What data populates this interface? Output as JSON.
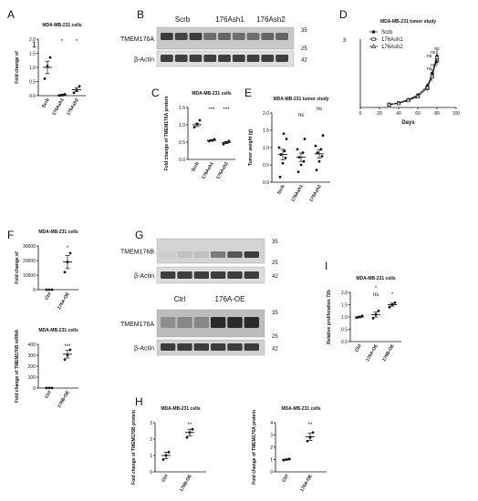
{
  "figure": {
    "panel_labels": [
      "A",
      "B",
      "C",
      "D",
      "E",
      "F",
      "G",
      "H",
      "I"
    ],
    "stray_marks": {
      "a_axis_one": "1",
      "d_axis_three": "3"
    }
  },
  "blots": {
    "B": {
      "col_labels": [
        "Scrb",
        "176Ash1",
        "176Ash2"
      ],
      "rows": [
        {
          "label": "TMEM176A",
          "markers": [
            "35",
            "25"
          ]
        },
        {
          "label": "β-Actin",
          "markers": [
            "42"
          ]
        }
      ]
    },
    "G": [
      {
        "col_labels": [
          "Ctrl",
          "176B-OE"
        ],
        "rows": [
          {
            "label": "TMEM176B",
            "markers": [
              "35",
              "25"
            ]
          },
          {
            "label": "β-Actin",
            "markers": [
              "42"
            ]
          }
        ]
      },
      {
        "col_labels": [
          "Ctrl",
          "176A-OE"
        ],
        "rows": [
          {
            "label": "TMEM176A",
            "markers": [
              "35",
              "25"
            ]
          },
          {
            "label": "β-Actin",
            "markers": [
              "42"
            ]
          }
        ]
      }
    ]
  },
  "chart_data": [
    {
      "panel": "A",
      "type": "scatter",
      "title": "MDA-MB-231 cells",
      "ylabel": "Fold change of",
      "ylim": [
        0,
        2
      ],
      "yticks": [
        "0.0",
        "0.5",
        "1.0",
        "1.5",
        "2.0"
      ],
      "categories": [
        "Scrb",
        "176Ash1",
        "176Ash2"
      ],
      "groups": [
        {
          "points": [
            0.6,
            1.05,
            1.35
          ],
          "mean": 1.0,
          "err": 0.22
        },
        {
          "points": [
            0.0,
            0.02,
            0.05
          ],
          "mean": 0.02,
          "err": 0.03
        },
        {
          "points": [
            0.1,
            0.2,
            0.33
          ],
          "mean": 0.21,
          "err": 0.07
        }
      ],
      "annotations": [
        {
          "text": "*",
          "group": 1
        },
        {
          "text": "*",
          "group": 2
        }
      ]
    },
    {
      "panel": "C",
      "type": "scatter",
      "title": "MDA-MB-231 cells",
      "ylabel": "Fold change of TMEM176A protein",
      "ylim": [
        0,
        1.5
      ],
      "yticks": [
        "0.0",
        "0.5",
        "1.0",
        "1.5"
      ],
      "categories": [
        "Scrb",
        "176Ash1",
        "176Ash2"
      ],
      "groups": [
        {
          "points": [
            0.93,
            1.02,
            1.13
          ],
          "mean": 1.0,
          "err": 0.05
        },
        {
          "points": [
            0.53,
            0.55,
            0.58
          ],
          "mean": 0.55,
          "err": 0.02
        },
        {
          "points": [
            0.44,
            0.49,
            0.53
          ],
          "mean": 0.49,
          "err": 0.03
        }
      ],
      "annotations": [
        {
          "text": "***",
          "group": 1
        },
        {
          "text": "***",
          "group": 2
        }
      ]
    },
    {
      "panel": "D",
      "type": "line",
      "title": "MDA-MB-231 tumor study",
      "xlabel": "Days",
      "ylabel": "",
      "xlim": [
        0,
        100
      ],
      "ylim": [
        0,
        600
      ],
      "xticks": [
        "0",
        "20",
        "40",
        "60",
        "80",
        "100"
      ],
      "x": [
        30,
        40,
        50,
        60,
        70,
        75,
        80
      ],
      "series": [
        {
          "name": "Scrb",
          "marker": "filled-circle",
          "values": [
            28,
            40,
            70,
            110,
            190,
            300,
            450
          ],
          "err": [
            5,
            6,
            10,
            15,
            25,
            40,
            60
          ]
        },
        {
          "name": "176Ash1",
          "marker": "open-square",
          "values": [
            25,
            38,
            65,
            100,
            170,
            280,
            420
          ],
          "err": [
            5,
            6,
            10,
            15,
            25,
            40,
            60
          ]
        },
        {
          "name": "176Ash2",
          "marker": "open-triangle",
          "values": [
            26,
            36,
            62,
            95,
            175,
            270,
            440
          ],
          "err": [
            5,
            6,
            10,
            15,
            25,
            40,
            60
          ]
        }
      ],
      "annotations": [
        "ns",
        "ns",
        "ns",
        "ns",
        "ns",
        "ns"
      ]
    },
    {
      "panel": "E",
      "type": "scatter",
      "title": "MDA-MB-231 tumor study",
      "ylabel": "Tumor  weight (g)",
      "ylim": [
        0,
        2
      ],
      "yticks": [
        "0.0",
        "0.5",
        "1.0",
        "1.5",
        "2.0"
      ],
      "categories": [
        "Scrb",
        "176Ash1",
        "176Ash2"
      ],
      "groups": [
        {
          "points": [
            0.15,
            0.55,
            0.7,
            0.8,
            0.9,
            1.0,
            1.25,
            1.4
          ],
          "mean": 0.8,
          "err": 0.15
        },
        {
          "points": [
            0.3,
            0.5,
            0.6,
            0.72,
            0.85,
            0.95,
            1.25
          ],
          "mean": 0.72,
          "err": 0.12
        },
        {
          "points": [
            0.35,
            0.6,
            0.75,
            0.85,
            0.95,
            1.05,
            1.35
          ],
          "mean": 0.82,
          "err": 0.12
        }
      ],
      "annotations": [
        {
          "text": "ns",
          "group": 1,
          "level": 1
        },
        {
          "text": "ns",
          "group": 2,
          "level": 2
        }
      ]
    },
    {
      "panel": "F-top",
      "type": "scatter",
      "title": "MDA-MB-231 cells",
      "ylabel": "Fold change of",
      "ylim": [
        0,
        30000
      ],
      "yticks": [
        "0",
        "10000",
        "20000",
        "30000"
      ],
      "categories": [
        "Ctrl",
        "176A-OE"
      ],
      "groups": [
        {
          "points": [
            1,
            1,
            1
          ],
          "mean": 1,
          "err": 0
        },
        {
          "points": [
            12000,
            19000,
            25000
          ],
          "mean": 19000,
          "err": 4500
        }
      ],
      "annotations": [
        {
          "text": "*",
          "group": 1
        }
      ]
    },
    {
      "panel": "F-bottom",
      "type": "scatter",
      "title": "MDA-MB-231 cells",
      "ylabel": "Fold change of TMEM176B mRNA",
      "ylim": [
        0,
        400
      ],
      "yticks": [
        "0",
        "100",
        "200",
        "300",
        "400"
      ],
      "categories": [
        "Ctrl",
        "176B-OE"
      ],
      "groups": [
        {
          "points": [
            1,
            1,
            1
          ],
          "mean": 1,
          "err": 0
        },
        {
          "points": [
            260,
            300,
            350
          ],
          "mean": 310,
          "err": 35
        }
      ],
      "annotations": [
        {
          "text": "***",
          "group": 1
        }
      ]
    },
    {
      "panel": "H-left",
      "type": "scatter",
      "title": "MDA-MB-231 cells",
      "ylabel": "Fold change of TMEM176B protein",
      "ylim": [
        0,
        3
      ],
      "yticks": [
        "0",
        "1",
        "2",
        "3"
      ],
      "categories": [
        "Ctrl",
        "176B-OE"
      ],
      "groups": [
        {
          "points": [
            0.75,
            1.0,
            1.2
          ],
          "mean": 1.0,
          "err": 0.2
        },
        {
          "points": [
            2.1,
            2.4,
            2.6
          ],
          "mean": 2.4,
          "err": 0.2
        }
      ],
      "annotations": [
        {
          "text": "**",
          "group": 1
        }
      ]
    },
    {
      "panel": "H-right",
      "type": "scatter",
      "title": "MDA-MB-231 cells",
      "ylabel": "Fold change of TMEM176A protein",
      "ylim": [
        0,
        4
      ],
      "yticks": [
        "0",
        "1",
        "2",
        "3",
        "4"
      ],
      "categories": [
        "Ctrl",
        "176A-OE"
      ],
      "groups": [
        {
          "points": [
            0.95,
            1.0,
            1.05
          ],
          "mean": 1.0,
          "err": 0.05
        },
        {
          "points": [
            2.5,
            2.8,
            3.2
          ],
          "mean": 2.85,
          "err": 0.3
        }
      ],
      "annotations": [
        {
          "text": "**",
          "group": 1
        }
      ]
    },
    {
      "panel": "I",
      "type": "scatter",
      "title": "MDA-MB-231 cells",
      "ylabel": "Relative proliferation 72h",
      "ylim": [
        0,
        2
      ],
      "yticks": [
        "0.0",
        "0.5",
        "1.0",
        "1.5",
        "2.0"
      ],
      "categories": [
        "Ctrl",
        "176A-OE",
        "176B-OE"
      ],
      "groups": [
        {
          "points": [
            0.97,
            1.0,
            1.05
          ],
          "mean": 1.0,
          "err": 0.03
        },
        {
          "points": [
            0.95,
            1.1,
            1.25
          ],
          "mean": 1.1,
          "err": 0.1
        },
        {
          "points": [
            1.4,
            1.5,
            1.58
          ],
          "mean": 1.5,
          "err": 0.06
        }
      ],
      "annotations": [
        {
          "text": "ns",
          "group": 1,
          "level": 1
        },
        {
          "text": "*",
          "group": 1,
          "level": 2
        },
        {
          "text": "*",
          "group": 2,
          "level": 1
        }
      ]
    }
  ]
}
